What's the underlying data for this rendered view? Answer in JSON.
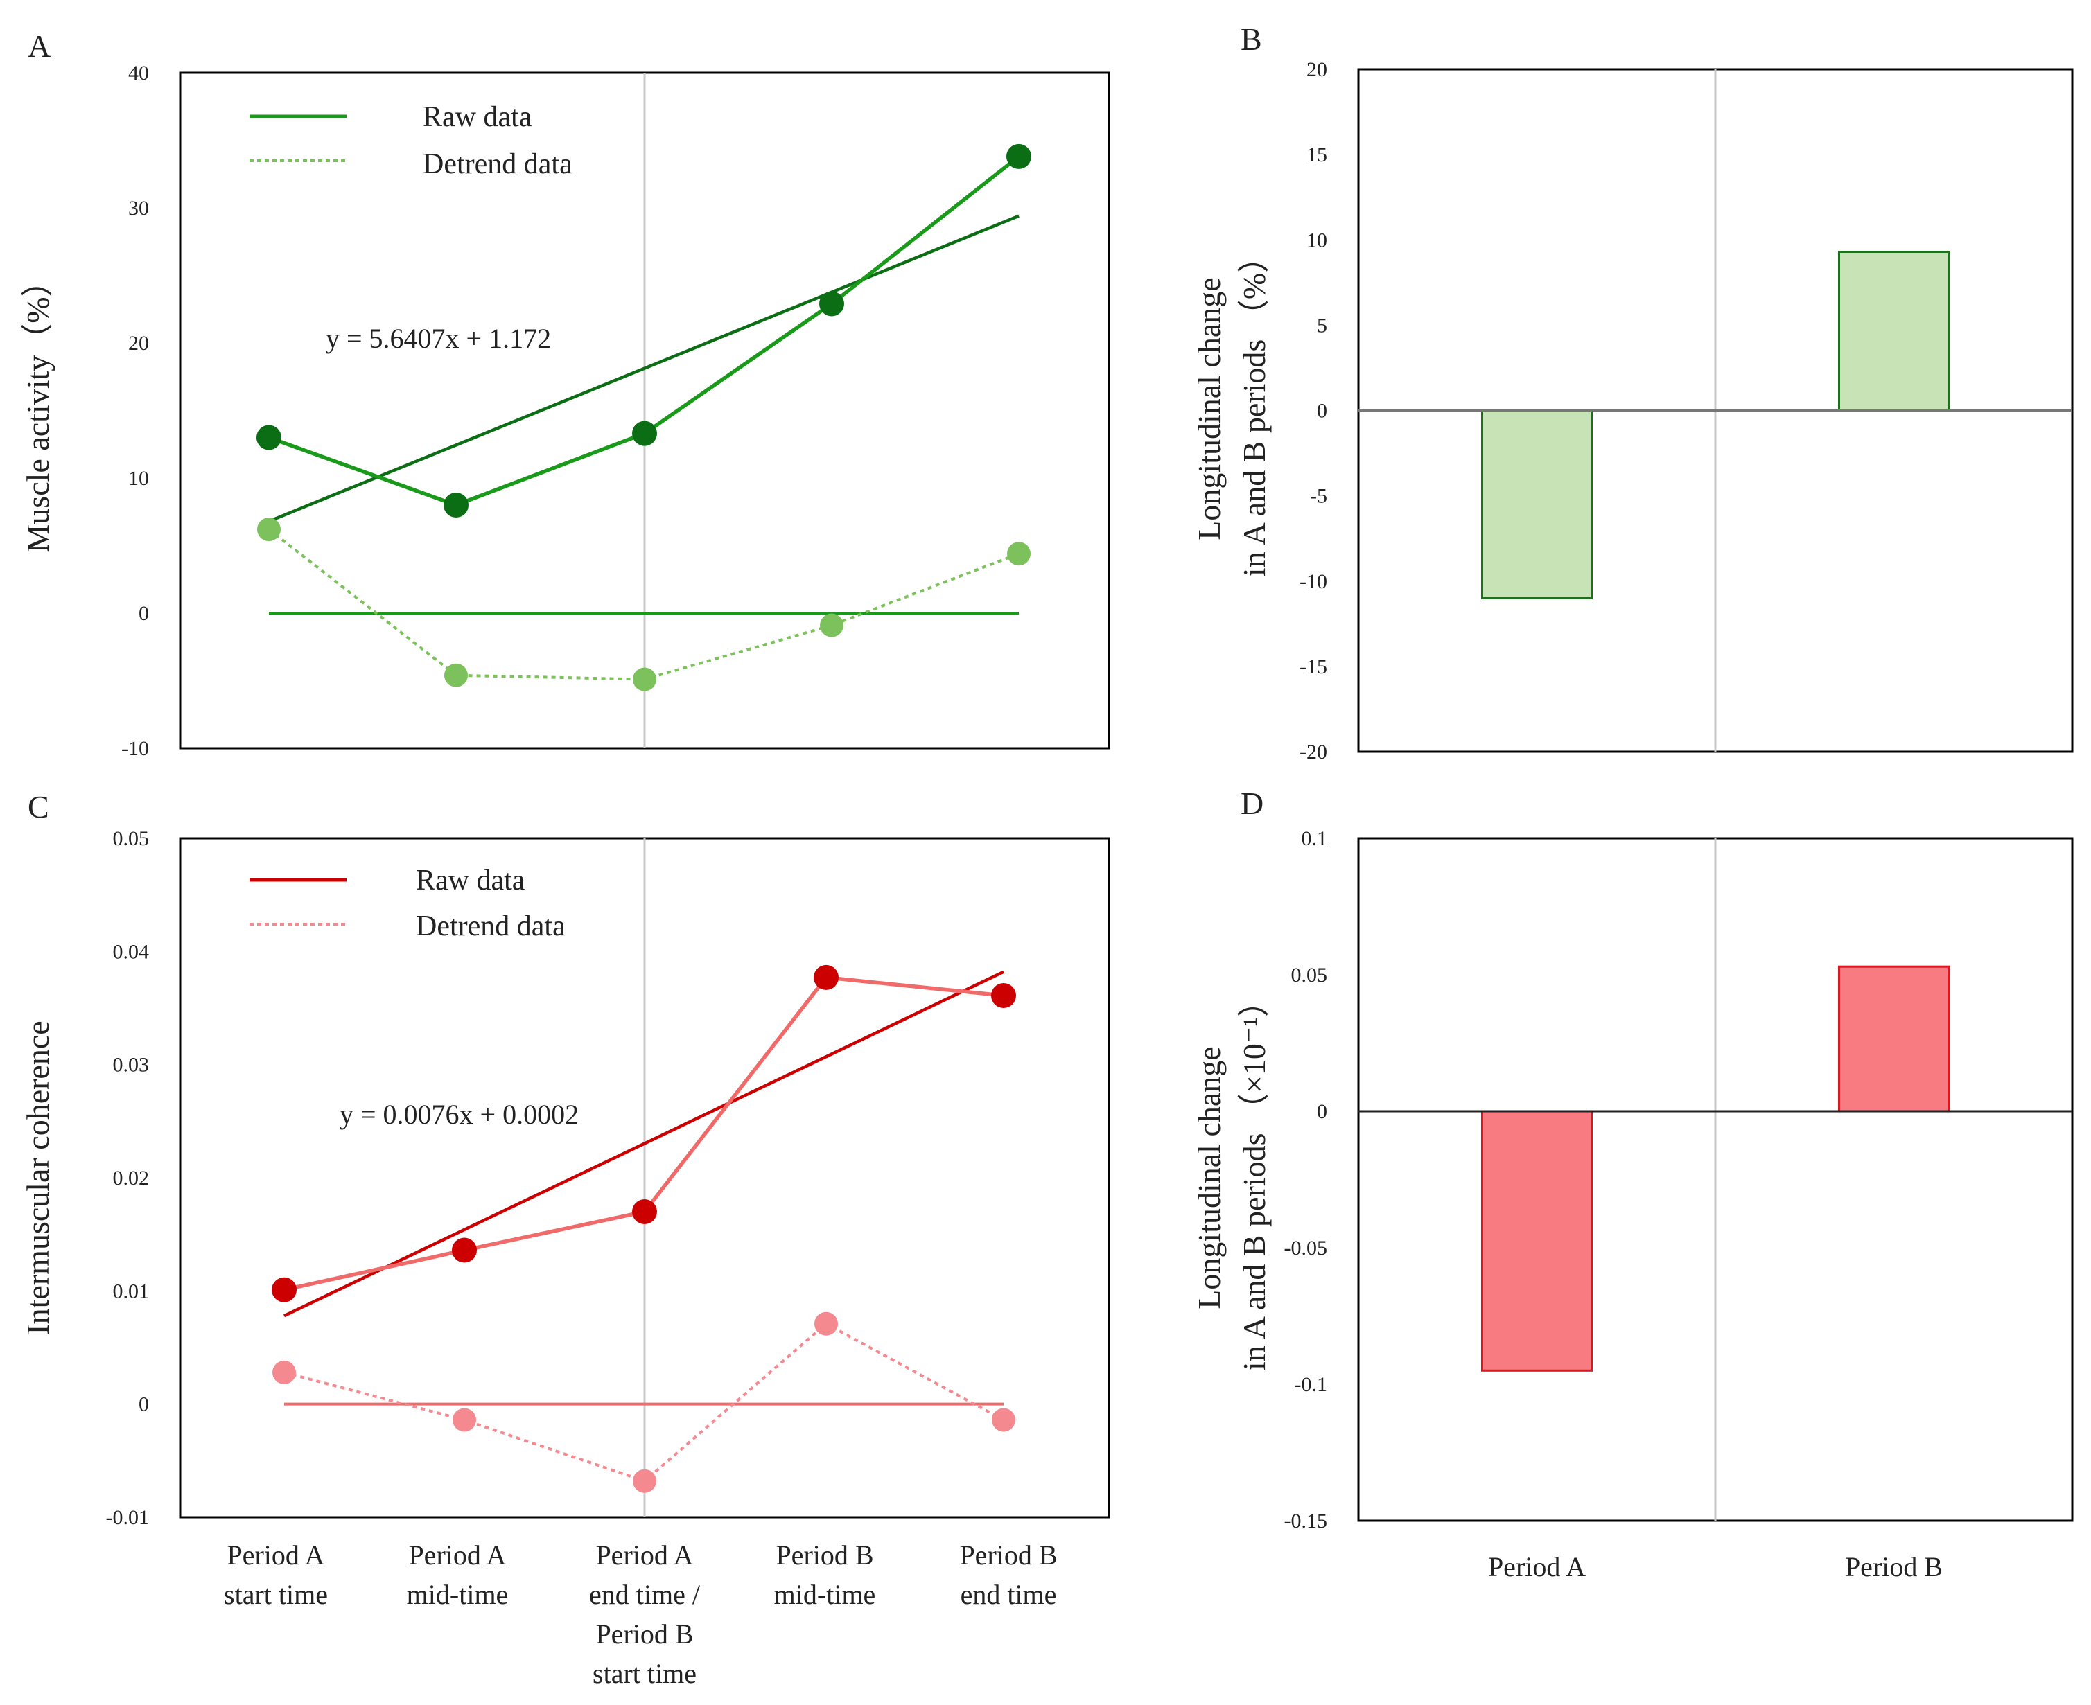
{
  "colors": {
    "green_raw": "#1a9a1a",
    "green_dark": "#0b6e14",
    "green_light": "#7cc15c",
    "green_bar_fill": "#c8e3b6",
    "green_bar_edge": "#1f6f1f",
    "red_raw": "#f06a6a",
    "red_dark": "#cc0000",
    "red_light": "#f4898f",
    "red_bar_fill": "#f77b80",
    "red_bar_edge": "#d21c24",
    "axis": "#000000",
    "divider": "#c8c8c8"
  },
  "x_categories": [
    [
      "Period A",
      "start time"
    ],
    [
      "Period A",
      "mid-time"
    ],
    [
      "Period A",
      "end time /",
      "Period B",
      "start time"
    ],
    [
      "Period B",
      "mid-time"
    ],
    [
      "Period B",
      "end time"
    ]
  ],
  "chart_data": [
    {
      "panel": "A",
      "type": "line",
      "ylabel": "Muscle activity（%）",
      "ylim": [
        -10,
        40
      ],
      "yticks": [
        -10,
        0,
        10,
        20,
        30,
        40
      ],
      "legend": {
        "raw": "Raw data",
        "detrend": "Detrend data"
      },
      "equation": "y = 5.6407x + 1.172",
      "series": [
        {
          "name": "Raw data",
          "values": [
            13,
            8,
            13.3,
            22.9,
            33.8
          ]
        },
        {
          "name": "Detrend data",
          "values": [
            6.2,
            -4.6,
            -4.9,
            -0.9,
            4.4
          ]
        },
        {
          "name": "Trend line",
          "values": [
            6.8,
            12.4,
            18.1,
            23.7,
            29.4
          ]
        },
        {
          "name": "Zero line",
          "values": [
            0,
            0,
            0,
            0,
            0
          ]
        }
      ]
    },
    {
      "panel": "B",
      "type": "bar",
      "ylabel_lines": [
        "Longitudinal change",
        "in A and B periods （%）"
      ],
      "ylim": [
        -20,
        20
      ],
      "yticks": [
        -20,
        -15,
        -10,
        -5,
        0,
        5,
        10,
        15,
        20
      ],
      "categories": [
        "Period A",
        "Period B"
      ],
      "values": [
        -11,
        9.3
      ]
    },
    {
      "panel": "C",
      "type": "line",
      "ylabel": "Intermuscular coherence",
      "ylim": [
        -0.01,
        0.05
      ],
      "yticks": [
        -0.01,
        0,
        0.01,
        0.02,
        0.03,
        0.04,
        0.05
      ],
      "ytick_labels": [
        "-0.01",
        "0",
        "0.01",
        "0.02",
        "0.03",
        "0.04",
        "0.05"
      ],
      "legend": {
        "raw": "Raw data",
        "detrend": "Detrend data"
      },
      "equation": "y = 0.0076x + 0.0002",
      "series": [
        {
          "name": "Raw data",
          "values": [
            0.0101,
            0.0136,
            0.017,
            0.0377,
            0.0361
          ]
        },
        {
          "name": "Detrend data",
          "values": [
            0.0028,
            -0.0014,
            -0.0068,
            0.0071,
            -0.0014
          ]
        },
        {
          "name": "Trend line",
          "values": [
            0.0078,
            0.0154,
            0.023,
            0.0306,
            0.0382
          ]
        },
        {
          "name": "Zero line",
          "values": [
            0,
            0,
            0,
            0,
            0
          ]
        }
      ]
    },
    {
      "panel": "D",
      "type": "bar",
      "ylabel_lines": [
        "Longitudinal change",
        "in A and B periods （×10⁻¹）"
      ],
      "ylim": [
        -0.15,
        0.1
      ],
      "yticks": [
        -0.15,
        -0.1,
        -0.05,
        0,
        0.05,
        0.1
      ],
      "ytick_labels": [
        "-0.15",
        "-0.1",
        "-0.05",
        "0",
        "0.05",
        "0.1"
      ],
      "categories": [
        "Period A",
        "Period B"
      ],
      "values": [
        -0.095,
        0.053
      ]
    }
  ]
}
